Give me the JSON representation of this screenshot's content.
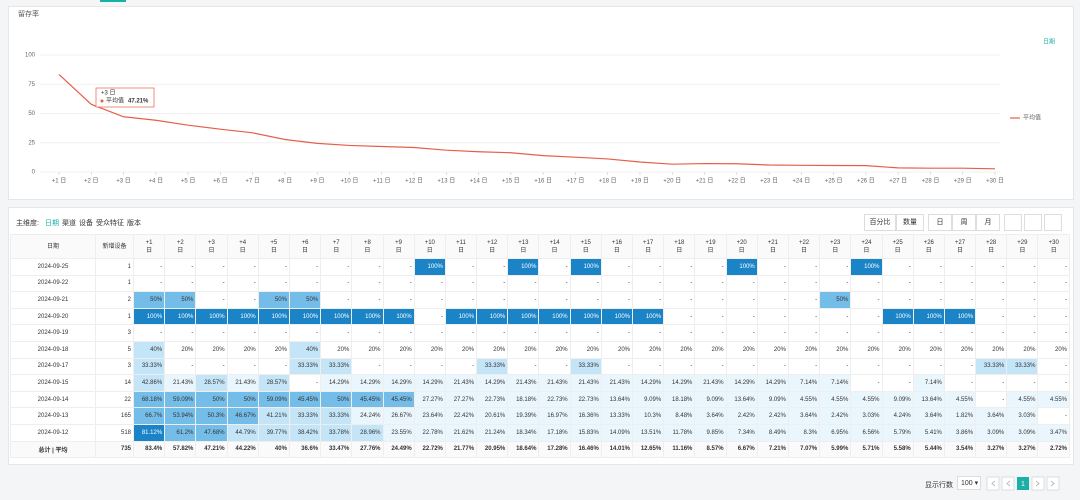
{
  "panel_title": "留存率",
  "chart_data": {
    "type": "line",
    "legend_title": "日期",
    "categories": [
      "+1 日",
      "+2 日",
      "+3 日",
      "+4 日",
      "+5 日",
      "+6 日",
      "+7 日",
      "+8 日",
      "+9 日",
      "+10 日",
      "+11 日",
      "+12 日",
      "+13 日",
      "+14 日",
      "+15 日",
      "+16 日",
      "+17 日",
      "+18 日",
      "+19 日",
      "+20 日",
      "+21 日",
      "+22 日",
      "+23 日",
      "+24 日",
      "+25 日",
      "+26 日",
      "+27 日",
      "+28 日",
      "+29 日",
      "+30 日"
    ],
    "series": [
      {
        "name": "平均值",
        "color": "#e5604a",
        "values": [
          83.4,
          57.82,
          47.21,
          44.22,
          40,
          36.6,
          33.47,
          27.76,
          24.49,
          22.72,
          21.77,
          20.95,
          18.64,
          17.28,
          16.46,
          14.01,
          12.65,
          11.16,
          8.57,
          6.67,
          7.21,
          7.07,
          5.99,
          5.71,
          5.58,
          5.44,
          3.54,
          3.27,
          3.27,
          2.72
        ]
      }
    ],
    "ylim": [
      0,
      100
    ],
    "yticks": [
      0,
      25,
      50,
      75,
      100
    ],
    "grid": true,
    "tooltip": {
      "title": "+3 日",
      "series": "平均值",
      "value_label": "47.21%"
    }
  },
  "toolbar": {
    "label": "主维度:",
    "dimensions": [
      "日期",
      "渠道",
      "设备",
      "受众特征",
      "版本"
    ],
    "modes": [
      "百分比",
      "数量"
    ],
    "periods": [
      "日",
      "周",
      "月"
    ]
  },
  "table": {
    "headers": [
      "日期",
      "新增设备"
    ],
    "day_headers": [
      [
        "+1",
        "日"
      ],
      [
        "+2",
        "日"
      ],
      [
        "+3",
        "日"
      ],
      [
        "+4",
        "日"
      ],
      [
        "+5",
        "日"
      ],
      [
        "+6",
        "日"
      ],
      [
        "+7",
        "日"
      ],
      [
        "+8",
        "日"
      ],
      [
        "+9",
        "日"
      ],
      [
        "+10",
        "日"
      ],
      [
        "+11",
        "日"
      ],
      [
        "+12",
        "日"
      ],
      [
        "+13",
        "日"
      ],
      [
        "+14",
        "日"
      ],
      [
        "+15",
        "日"
      ],
      [
        "+16",
        "日"
      ],
      [
        "+17",
        "日"
      ],
      [
        "+18",
        "日"
      ],
      [
        "+19",
        "日"
      ],
      [
        "+20",
        "日"
      ],
      [
        "+21",
        "日"
      ],
      [
        "+22",
        "日"
      ],
      [
        "+23",
        "日"
      ],
      [
        "+24",
        "日"
      ],
      [
        "+25",
        "日"
      ],
      [
        "+26",
        "日"
      ],
      [
        "+27",
        "日"
      ],
      [
        "+28",
        "日"
      ],
      [
        "+29",
        "日"
      ],
      [
        "+30",
        "日"
      ]
    ],
    "rows": [
      {
        "date": "2024-09-25",
        "new": "1",
        "cells": [
          "-",
          "-",
          "-",
          "-",
          "-",
          "-",
          "-",
          "-",
          "-",
          "100%",
          "-",
          "-",
          "100%",
          "-",
          "100%",
          "-",
          "-",
          "-",
          "-",
          "100%",
          "-",
          "-",
          "-",
          "100%",
          "-",
          "-",
          "-",
          "-",
          "-",
          "-"
        ]
      },
      {
        "date": "2024-09-22",
        "new": "1",
        "cells": [
          "-",
          "-",
          "-",
          "-",
          "-",
          "-",
          "-",
          "-",
          "-",
          "-",
          "-",
          "-",
          "-",
          "-",
          "-",
          "-",
          "-",
          "-",
          "-",
          "-",
          "-",
          "-",
          "-",
          "-",
          "-",
          "-",
          "-",
          "-",
          "-",
          "-"
        ]
      },
      {
        "date": "2024-09-21",
        "new": "2",
        "cells": [
          "50%",
          "50%",
          "-",
          "-",
          "50%",
          "50%",
          "-",
          "-",
          "-",
          "-",
          "-",
          "-",
          "-",
          "-",
          "-",
          "-",
          "-",
          "-",
          "-",
          "-",
          "-",
          "-",
          "50%",
          "-",
          "-",
          "-",
          "-",
          "-",
          "-",
          "-"
        ]
      },
      {
        "date": "2024-09-20",
        "new": "1",
        "cells": [
          "100%",
          "100%",
          "100%",
          "100%",
          "100%",
          "100%",
          "100%",
          "100%",
          "100%",
          "-",
          "100%",
          "100%",
          "100%",
          "100%",
          "100%",
          "100%",
          "100%",
          "-",
          "-",
          "-",
          "-",
          "-",
          "-",
          "-",
          "100%",
          "100%",
          "100%",
          "-",
          "-",
          "-"
        ]
      },
      {
        "date": "2024-09-19",
        "new": "3",
        "cells": [
          "-",
          "-",
          "-",
          "-",
          "-",
          "-",
          "-",
          "-",
          "-",
          "-",
          "-",
          "-",
          "-",
          "-",
          "-",
          "-",
          "-",
          "-",
          "-",
          "-",
          "-",
          "-",
          "-",
          "-",
          "-",
          "-",
          "-",
          "-",
          "-",
          "-"
        ]
      },
      {
        "date": "2024-09-18",
        "new": "5",
        "cells": [
          "40%",
          "20%",
          "20%",
          "20%",
          "20%",
          "40%",
          "20%",
          "20%",
          "20%",
          "20%",
          "20%",
          "20%",
          "20%",
          "20%",
          "20%",
          "20%",
          "20%",
          "20%",
          "20%",
          "20%",
          "20%",
          "20%",
          "20%",
          "20%",
          "20%",
          "20%",
          "20%",
          "20%",
          "20%",
          "20%"
        ]
      },
      {
        "date": "2024-09-17",
        "new": "3",
        "cells": [
          "33.33%",
          "-",
          "-",
          "-",
          "-",
          "33.33%",
          "33.33%",
          "-",
          "-",
          "-",
          "-",
          "33.33%",
          "-",
          "-",
          "33.33%",
          "-",
          "-",
          "-",
          "-",
          "-",
          "-",
          "-",
          "-",
          "-",
          "-",
          "-",
          "-",
          "33.33%",
          "33.33%",
          "-"
        ]
      },
      {
        "date": "2024-09-15",
        "new": "14",
        "cells": [
          "42.86%",
          "21.43%",
          "28.57%",
          "21.43%",
          "28.57%",
          "-",
          "14.29%",
          "14.29%",
          "14.29%",
          "14.29%",
          "21.43%",
          "14.29%",
          "21.43%",
          "21.43%",
          "21.43%",
          "21.43%",
          "14.29%",
          "14.29%",
          "21.43%",
          "14.29%",
          "14.29%",
          "7.14%",
          "7.14%",
          "-",
          "-",
          "7.14%",
          "-",
          "-",
          "-",
          "-"
        ]
      },
      {
        "date": "2024-09-14",
        "new": "22",
        "cells": [
          "68.18%",
          "59.09%",
          "50%",
          "50%",
          "59.09%",
          "45.45%",
          "50%",
          "45.45%",
          "45.45%",
          "27.27%",
          "27.27%",
          "22.73%",
          "18.18%",
          "22.73%",
          "22.73%",
          "13.64%",
          "9.09%",
          "18.18%",
          "9.09%",
          "13.64%",
          "9.09%",
          "4.55%",
          "4.55%",
          "4.55%",
          "9.09%",
          "13.64%",
          "4.55%",
          "-",
          "4.55%",
          "4.55%"
        ]
      },
      {
        "date": "2024-09-13",
        "new": "165",
        "cells": [
          "66.7%",
          "53.94%",
          "50.3%",
          "46.67%",
          "41.21%",
          "33.33%",
          "33.33%",
          "24.24%",
          "26.67%",
          "23.64%",
          "22.42%",
          "20.61%",
          "19.39%",
          "16.97%",
          "16.36%",
          "13.33%",
          "10.3%",
          "8.48%",
          "3.64%",
          "2.42%",
          "2.42%",
          "3.64%",
          "2.42%",
          "3.03%",
          "4.24%",
          "3.64%",
          "1.82%",
          "3.64%",
          "3.03%",
          "-"
        ]
      },
      {
        "date": "2024-09-12",
        "new": "518",
        "cells": [
          "81.12%",
          "61.2%",
          "47.68%",
          "44.79%",
          "39.77%",
          "38.42%",
          "33.78%",
          "28.96%",
          "23.55%",
          "22.78%",
          "21.62%",
          "21.24%",
          "18.34%",
          "17.18%",
          "15.83%",
          "14.09%",
          "13.51%",
          "11.78%",
          "9.85%",
          "7.34%",
          "8.49%",
          "8.3%",
          "6.95%",
          "6.56%",
          "5.79%",
          "5.41%",
          "3.86%",
          "3.09%",
          "3.09%",
          "3.47%"
        ]
      }
    ],
    "total": {
      "date": "总计 | 平均",
      "new": "735",
      "cells": [
        "83.4%",
        "57.82%",
        "47.21%",
        "44.22%",
        "40%",
        "36.6%",
        "33.47%",
        "27.76%",
        "24.49%",
        "22.72%",
        "21.77%",
        "20.95%",
        "18.64%",
        "17.28%",
        "16.46%",
        "14.01%",
        "12.65%",
        "11.16%",
        "8.57%",
        "6.67%",
        "7.21%",
        "7.07%",
        "5.99%",
        "5.71%",
        "5.58%",
        "5.44%",
        "3.54%",
        "3.27%",
        "3.27%",
        "2.72%"
      ]
    }
  },
  "footer": {
    "rows_label": "显示行数",
    "rows_value": "100",
    "page": "1"
  }
}
